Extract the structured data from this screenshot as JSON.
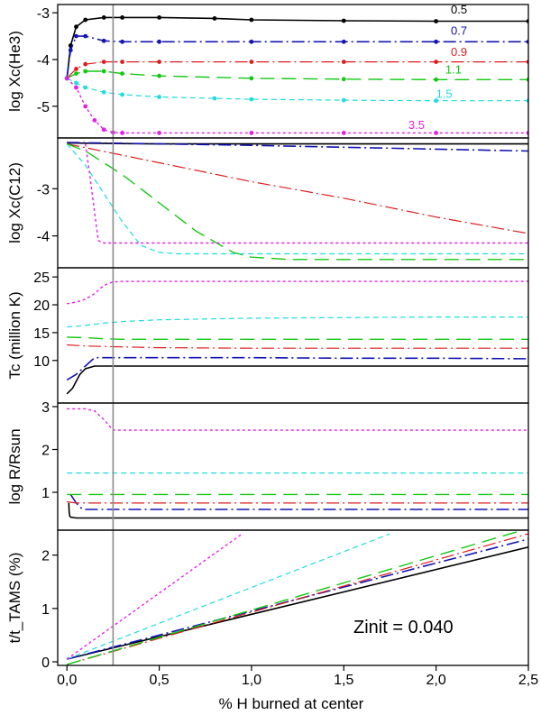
{
  "figure": {
    "xlabel": "% H burned at center",
    "zinit_label": "Zinit = 0.040"
  },
  "chart_data": {
    "type": "line",
    "x_axis": {
      "label": "% H burned at center",
      "range": [
        -0.05,
        2.5
      ],
      "ticks": [
        0,
        0.5,
        1.0,
        1.5,
        2.0,
        2.5
      ],
      "tick_labels": [
        "0,0",
        "0,5",
        "1,0",
        "1,5",
        "2,0",
        "2,5"
      ]
    },
    "vline_x": 0.25,
    "mass_styles": {
      "0.5": {
        "color": "#000000",
        "dash": "",
        "width": 1.6
      },
      "0.7": {
        "color": "#1414b4",
        "dash": "14,4,2,4",
        "width": 1.6
      },
      "0.9": {
        "color": "#dc1e1e",
        "dash": "14,4,2,4",
        "width": 1.2
      },
      "1.1": {
        "color": "#14c814",
        "dash": "16,8",
        "width": 1.4
      },
      "1.5": {
        "color": "#20dcdc",
        "dash": "6,4",
        "width": 1.2
      },
      "3.5": {
        "color": "#e61ee6",
        "dash": "3,3",
        "width": 1.4
      }
    },
    "panels": [
      {
        "id": "he3",
        "ylabel": "log Xc(He3)",
        "ylim": [
          -5.6,
          -2.9
        ],
        "yticks": [
          -3,
          -4,
          -5
        ],
        "ytick_labels": [
          "-3",
          "-4",
          "-5"
        ],
        "series": [
          {
            "mass": "0.5",
            "label": "0.5",
            "label_at": [
              2.08,
              -3.02
            ],
            "markers": true,
            "x": [
              0,
              0.02,
              0.05,
              0.1,
              0.2,
              0.3,
              0.5,
              0.8,
              1.0,
              1.5,
              2.0,
              2.5
            ],
            "y": [
              -4.4,
              -3.7,
              -3.3,
              -3.15,
              -3.1,
              -3.1,
              -3.1,
              -3.12,
              -3.15,
              -3.17,
              -3.18,
              -3.18
            ]
          },
          {
            "mass": "0.7",
            "label": "0.7",
            "label_at": [
              2.08,
              -3.47
            ],
            "markers": true,
            "x": [
              0,
              0.02,
              0.05,
              0.1,
              0.2,
              0.3,
              0.5,
              1.0,
              1.5,
              2.0,
              2.5
            ],
            "y": [
              -4.4,
              -3.8,
              -3.5,
              -3.5,
              -3.6,
              -3.62,
              -3.62,
              -3.62,
              -3.62,
              -3.62,
              -3.62
            ]
          },
          {
            "mass": "0.9",
            "label": "0.9",
            "label_at": [
              2.08,
              -3.92
            ],
            "markers": true,
            "x": [
              0,
              0.05,
              0.1,
              0.2,
              0.3,
              0.5,
              1.0,
              1.5,
              2.0,
              2.5
            ],
            "y": [
              -4.4,
              -4.2,
              -4.1,
              -4.05,
              -4.05,
              -4.05,
              -4.05,
              -4.05,
              -4.05,
              -4.05
            ]
          },
          {
            "mass": "1.1",
            "label": "1.1",
            "label_at": [
              2.05,
              -4.3
            ],
            "markers": true,
            "x": [
              0,
              0.05,
              0.1,
              0.2,
              0.3,
              0.5,
              1.0,
              1.5,
              2.0,
              2.5
            ],
            "y": [
              -4.4,
              -4.3,
              -4.25,
              -4.25,
              -4.3,
              -4.35,
              -4.4,
              -4.42,
              -4.43,
              -4.43
            ]
          },
          {
            "mass": "1.5",
            "label": "1.5",
            "label_at": [
              2.0,
              -4.82
            ],
            "markers": true,
            "x": [
              0,
              0.05,
              0.1,
              0.2,
              0.3,
              0.5,
              0.8,
              1.0,
              1.5,
              2.0,
              2.5
            ],
            "y": [
              -4.4,
              -4.5,
              -4.6,
              -4.7,
              -4.75,
              -4.8,
              -4.83,
              -4.85,
              -4.87,
              -4.88,
              -4.88
            ]
          },
          {
            "mass": "3.5",
            "label": "3.5",
            "label_at": [
              1.85,
              -5.48
            ],
            "markers": true,
            "x": [
              0,
              0.05,
              0.1,
              0.15,
              0.2,
              0.25,
              0.3,
              0.5,
              1.0,
              1.5,
              2.0,
              2.5
            ],
            "y": [
              -4.4,
              -4.6,
              -5.0,
              -5.3,
              -5.5,
              -5.56,
              -5.57,
              -5.57,
              -5.57,
              -5.57,
              -5.57,
              -5.57
            ]
          }
        ]
      },
      {
        "id": "c12",
        "ylabel": "log Xc(C12)",
        "ylim": [
          -4.6,
          -2.0
        ],
        "yticks": [
          -3,
          -4
        ],
        "ytick_labels": [
          "-3",
          "-4"
        ],
        "series": [
          {
            "mass": "0.5",
            "x": [
              0,
              0.2,
              0.5,
              1.0,
              1.5,
              2.0,
              2.5
            ],
            "y": [
              -2.03,
              -2.04,
              -2.05,
              -2.05,
              -2.05,
              -2.05,
              -2.05
            ]
          },
          {
            "mass": "0.7",
            "x": [
              0,
              0.5,
              1.0,
              1.5,
              2.0,
              2.5
            ],
            "y": [
              -2.02,
              -2.05,
              -2.08,
              -2.12,
              -2.16,
              -2.2
            ]
          },
          {
            "mass": "0.9",
            "x": [
              0,
              0.5,
              1.0,
              1.5,
              2.0,
              2.5
            ],
            "y": [
              -2.05,
              -2.45,
              -2.85,
              -3.2,
              -3.6,
              -3.95
            ]
          },
          {
            "mass": "1.1",
            "x": [
              0,
              0.1,
              0.3,
              0.5,
              0.7,
              0.9,
              1.0,
              1.2,
              1.5,
              2.0,
              2.5
            ],
            "y": [
              -2.05,
              -2.2,
              -2.7,
              -3.3,
              -3.9,
              -4.35,
              -4.45,
              -4.5,
              -4.5,
              -4.5,
              -4.5
            ]
          },
          {
            "mass": "1.5",
            "x": [
              0,
              0.1,
              0.2,
              0.3,
              0.4,
              0.5,
              0.6,
              0.8,
              1.0,
              1.5,
              2.0,
              2.5
            ],
            "y": [
              -2.05,
              -2.5,
              -3.1,
              -3.7,
              -4.2,
              -4.35,
              -4.38,
              -4.38,
              -4.38,
              -4.38,
              -4.38,
              -4.38
            ]
          },
          {
            "mass": "3.5",
            "x": [
              0.1,
              0.12,
              0.15,
              0.17,
              0.2,
              0.25,
              0.5,
              1.0,
              1.5,
              2.0,
              2.5
            ],
            "y": [
              -2.05,
              -2.6,
              -3.5,
              -4.1,
              -4.15,
              -4.15,
              -4.15,
              -4.15,
              -4.15,
              -4.15,
              -4.15
            ]
          }
        ]
      },
      {
        "id": "tc",
        "ylabel": "Tc (million K)",
        "ylim": [
          3,
          26
        ],
        "yticks": [
          25,
          20,
          15,
          10
        ],
        "ytick_labels": [
          "25",
          "20",
          "15",
          "10"
        ],
        "series": [
          {
            "mass": "0.5",
            "x": [
              0,
              0.03,
              0.07,
              0.1,
              0.15,
              0.3,
              0.5,
              1.0,
              1.5,
              2.0,
              2.5
            ],
            "y": [
              4,
              5,
              7.5,
              8.5,
              9,
              9,
              9,
              9,
              9,
              9,
              9
            ]
          },
          {
            "mass": "0.7",
            "x": [
              0,
              0.05,
              0.1,
              0.15,
              0.3,
              0.5,
              1.0,
              1.5,
              2.0,
              2.5
            ],
            "y": [
              6.5,
              7.5,
              9,
              10.5,
              10.5,
              10.5,
              10.5,
              10.4,
              10.4,
              10.3
            ]
          },
          {
            "mass": "0.9",
            "x": [
              0,
              0.1,
              0.2,
              0.5,
              1.0,
              1.5,
              2.0,
              2.5
            ],
            "y": [
              12.8,
              12.6,
              12.5,
              12.3,
              12.2,
              12.2,
              12.2,
              12.2
            ]
          },
          {
            "mass": "1.1",
            "x": [
              0,
              0.1,
              0.2,
              0.3,
              0.5,
              1.0,
              1.5,
              2.0,
              2.5
            ],
            "y": [
              14.2,
              14.1,
              13.9,
              13.8,
              13.8,
              13.8,
              13.8,
              13.8,
              13.8
            ]
          },
          {
            "mass": "1.5",
            "x": [
              0,
              0.1,
              0.2,
              0.3,
              0.5,
              1.0,
              1.5,
              2.0,
              2.5
            ],
            "y": [
              16,
              16.3,
              16.7,
              17,
              17.3,
              17.6,
              17.7,
              17.8,
              17.8
            ]
          },
          {
            "mass": "3.5",
            "x": [
              0,
              0.05,
              0.1,
              0.15,
              0.2,
              0.25,
              0.3,
              0.5,
              1.0,
              1.5,
              2.0,
              2.5
            ],
            "y": [
              20.2,
              20.5,
              21,
              22,
              23.5,
              24.1,
              24.2,
              24.2,
              24.2,
              24.2,
              24.2,
              24.2
            ]
          }
        ]
      },
      {
        "id": "radius",
        "ylabel": "log R/Rsun",
        "ylim": [
          0.2,
          3.0
        ],
        "yticks": [
          3,
          2,
          1
        ],
        "ytick_labels": [
          "3",
          "2",
          "1"
        ],
        "series": [
          {
            "mass": "0.5",
            "x": [
              0.01,
              0.012,
              0.015,
              0.02,
              0.05,
              0.1,
              0.5,
              1.0,
              1.5,
              2.0,
              2.5
            ],
            "y": [
              0.75,
              0.55,
              0.45,
              0.42,
              0.4,
              0.4,
              0.4,
              0.4,
              0.4,
              0.4,
              0.4
            ]
          },
          {
            "mass": "0.7",
            "x": [
              0.02,
              0.05,
              0.08,
              0.1,
              0.15,
              0.3,
              0.5,
              1.0,
              1.5,
              2.0,
              2.5
            ],
            "y": [
              0.95,
              0.75,
              0.62,
              0.6,
              0.6,
              0.6,
              0.6,
              0.6,
              0.6,
              0.6,
              0.6
            ]
          },
          {
            "mass": "0.9",
            "x": [
              0,
              0.05,
              0.1,
              0.3,
              0.5,
              1.0,
              1.5,
              2.0,
              2.5
            ],
            "y": [
              0.78,
              0.75,
              0.75,
              0.75,
              0.75,
              0.75,
              0.75,
              0.75,
              0.75
            ]
          },
          {
            "mass": "1.1",
            "x": [
              0,
              0.5,
              1.0,
              1.5,
              2.0,
              2.5
            ],
            "y": [
              0.95,
              0.95,
              0.95,
              0.95,
              0.95,
              0.95
            ]
          },
          {
            "mass": "1.5",
            "x": [
              0,
              0.5,
              1.0,
              1.5,
              2.0,
              2.5
            ],
            "y": [
              1.45,
              1.45,
              1.45,
              1.45,
              1.45,
              1.45
            ]
          },
          {
            "mass": "3.5",
            "x": [
              0,
              0.1,
              0.15,
              0.2,
              0.25,
              0.3,
              0.5,
              1.0,
              1.5,
              2.0,
              2.5
            ],
            "y": [
              2.95,
              2.95,
              2.9,
              2.7,
              2.45,
              2.45,
              2.45,
              2.45,
              2.45,
              2.45,
              2.45
            ]
          }
        ]
      },
      {
        "id": "time",
        "ylabel": "t/t_TAMS (%)",
        "ylim": [
          0,
          2.4
        ],
        "yticks": [
          2,
          1,
          0
        ],
        "ytick_labels": [
          "2",
          "1",
          "0"
        ],
        "series": [
          {
            "mass": "0.5",
            "x": [
              0,
              2.5
            ],
            "y": [
              0.05,
              2.15
            ]
          },
          {
            "mass": "0.7",
            "x": [
              0,
              2.5
            ],
            "y": [
              0.05,
              2.3
            ]
          },
          {
            "mass": "0.9",
            "x": [
              0,
              2.5
            ],
            "y": [
              -0.05,
              2.4
            ]
          },
          {
            "mass": "1.1",
            "x": [
              0,
              2.5
            ],
            "y": [
              -0.05,
              2.5
            ]
          },
          {
            "mass": "1.5",
            "x": [
              0,
              1.75
            ],
            "y": [
              0.05,
              2.4
            ]
          },
          {
            "mass": "3.5",
            "x": [
              0,
              0.95
            ],
            "y": [
              0.05,
              2.4
            ]
          }
        ]
      }
    ]
  }
}
